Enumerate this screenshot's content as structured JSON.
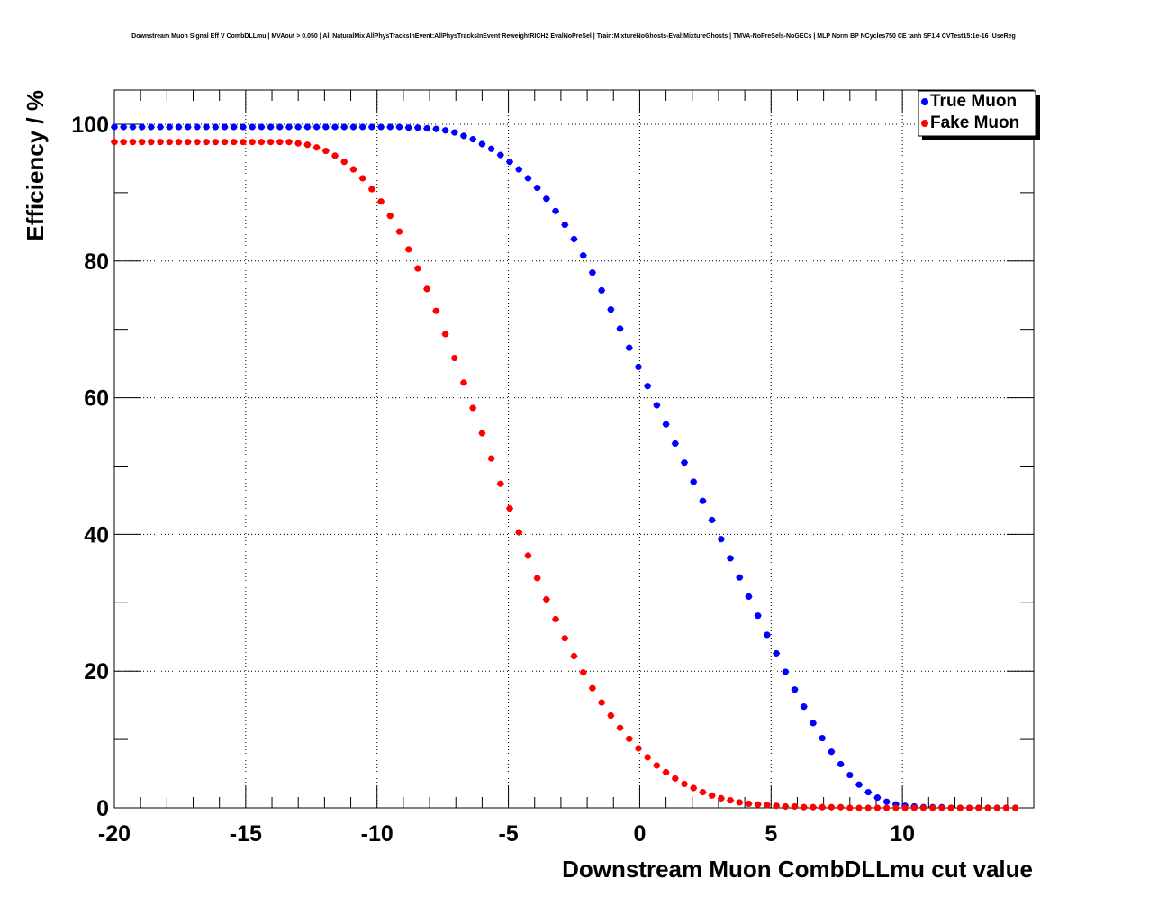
{
  "chart_data": {
    "type": "scatter",
    "title": "Downstream Muon Signal Eff V CombDLLmu | MVAout > 0.050 | All NaturalMix AllPhysTracksInEvent:AllPhysTracksInEvent ReweightRICH2 EvalNoPreSel | Train:MixtureNoGhosts-Eval:MixtureGhosts | TMVA-NoPreSels-NoGECs | MLP Norm BP NCycles750 CE tanh SF1.4 CVTest15:1e-16 !UseReg",
    "xlabel": "Downstream Muon CombDLLmu cut value",
    "ylabel": "Efficiency / %",
    "xlim": [
      -20,
      15
    ],
    "ylim": [
      0,
      105
    ],
    "x_ticks": [
      -20,
      -15,
      -10,
      -5,
      0,
      5,
      10
    ],
    "x_tick_labels": [
      "-20",
      "-15",
      "-10",
      "-5",
      "0",
      "5",
      "10"
    ],
    "y_ticks": [
      0,
      20,
      40,
      60,
      80,
      100
    ],
    "y_tick_labels": [
      "0",
      "20",
      "40",
      "60",
      "80",
      "100"
    ],
    "grid": true,
    "legend_position": "top-right",
    "x": [
      -20.0,
      -19.65,
      -19.3,
      -18.95,
      -18.6,
      -18.25,
      -17.9,
      -17.55,
      -17.2,
      -16.85,
      -16.5,
      -16.15,
      -15.8,
      -15.45,
      -15.1,
      -14.75,
      -14.4,
      -14.05,
      -13.7,
      -13.35,
      -13.0,
      -12.65,
      -12.3,
      -11.95,
      -11.6,
      -11.25,
      -10.9,
      -10.55,
      -10.2,
      -9.85,
      -9.5,
      -9.15,
      -8.8,
      -8.45,
      -8.1,
      -7.75,
      -7.4,
      -7.05,
      -6.7,
      -6.35,
      -6.0,
      -5.65,
      -5.3,
      -4.95,
      -4.6,
      -4.25,
      -3.9,
      -3.55,
      -3.2,
      -2.85,
      -2.5,
      -2.15,
      -1.8,
      -1.45,
      -1.1,
      -0.75,
      -0.4,
      -0.05,
      0.3,
      0.65,
      1.0,
      1.35,
      1.7,
      2.05,
      2.4,
      2.75,
      3.1,
      3.45,
      3.8,
      4.15,
      4.5,
      4.85,
      5.2,
      5.55,
      5.9,
      6.25,
      6.6,
      6.95,
      7.3,
      7.65,
      8.0,
      8.35,
      8.7,
      9.05,
      9.4,
      9.75,
      10.1,
      10.45,
      10.8,
      11.15,
      11.5,
      11.85,
      12.2,
      12.55,
      12.9,
      13.25,
      13.6,
      13.95,
      14.3
    ],
    "series": [
      {
        "name": "True Muon",
        "color": "#0000ff",
        "values": [
          99.6,
          99.6,
          99.6,
          99.6,
          99.6,
          99.6,
          99.6,
          99.6,
          99.6,
          99.6,
          99.6,
          99.6,
          99.6,
          99.6,
          99.6,
          99.6,
          99.6,
          99.6,
          99.6,
          99.6,
          99.6,
          99.6,
          99.6,
          99.6,
          99.6,
          99.6,
          99.6,
          99.6,
          99.6,
          99.6,
          99.6,
          99.6,
          99.5,
          99.5,
          99.4,
          99.3,
          99.1,
          98.8,
          98.3,
          97.8,
          97.1,
          96.4,
          95.5,
          94.5,
          93.4,
          92.1,
          90.7,
          89.1,
          87.3,
          85.3,
          83.2,
          80.8,
          78.3,
          75.7,
          72.9,
          70.1,
          67.3,
          64.5,
          61.7,
          58.9,
          56.1,
          53.3,
          50.5,
          47.7,
          44.9,
          42.1,
          39.3,
          36.5,
          33.7,
          30.9,
          28.1,
          25.3,
          22.6,
          19.9,
          17.3,
          14.8,
          12.4,
          10.2,
          8.2,
          6.4,
          4.8,
          3.4,
          2.3,
          1.5,
          0.9,
          0.5,
          0.3,
          0.2,
          0.1,
          0.1,
          0.1,
          0.0,
          0.0,
          0.0,
          0.0,
          0.0,
          0.0,
          0.0,
          0.0
        ]
      },
      {
        "name": "Fake Muon",
        "color": "#ff0000",
        "values": [
          97.4,
          97.4,
          97.4,
          97.4,
          97.4,
          97.4,
          97.4,
          97.4,
          97.4,
          97.4,
          97.4,
          97.4,
          97.4,
          97.4,
          97.4,
          97.4,
          97.4,
          97.4,
          97.4,
          97.4,
          97.2,
          97.0,
          96.6,
          96.1,
          95.4,
          94.5,
          93.4,
          92.1,
          90.5,
          88.7,
          86.6,
          84.3,
          81.7,
          78.9,
          75.9,
          72.7,
          69.3,
          65.8,
          62.2,
          58.5,
          54.8,
          51.1,
          47.4,
          43.8,
          40.3,
          36.9,
          33.6,
          30.5,
          27.6,
          24.8,
          22.2,
          19.8,
          17.5,
          15.4,
          13.5,
          11.7,
          10.1,
          8.7,
          7.4,
          6.2,
          5.2,
          4.3,
          3.5,
          2.9,
          2.3,
          1.8,
          1.4,
          1.1,
          0.8,
          0.6,
          0.5,
          0.4,
          0.3,
          0.2,
          0.2,
          0.1,
          0.1,
          0.1,
          0.1,
          0.1,
          0.0,
          0.0,
          0.0,
          0.0,
          0.0,
          0.0,
          0.0,
          0.0,
          0.0,
          0.0,
          0.0,
          0.0,
          0.0,
          0.0,
          0.0,
          0.0,
          0.0,
          0.0,
          0.0
        ]
      }
    ]
  }
}
